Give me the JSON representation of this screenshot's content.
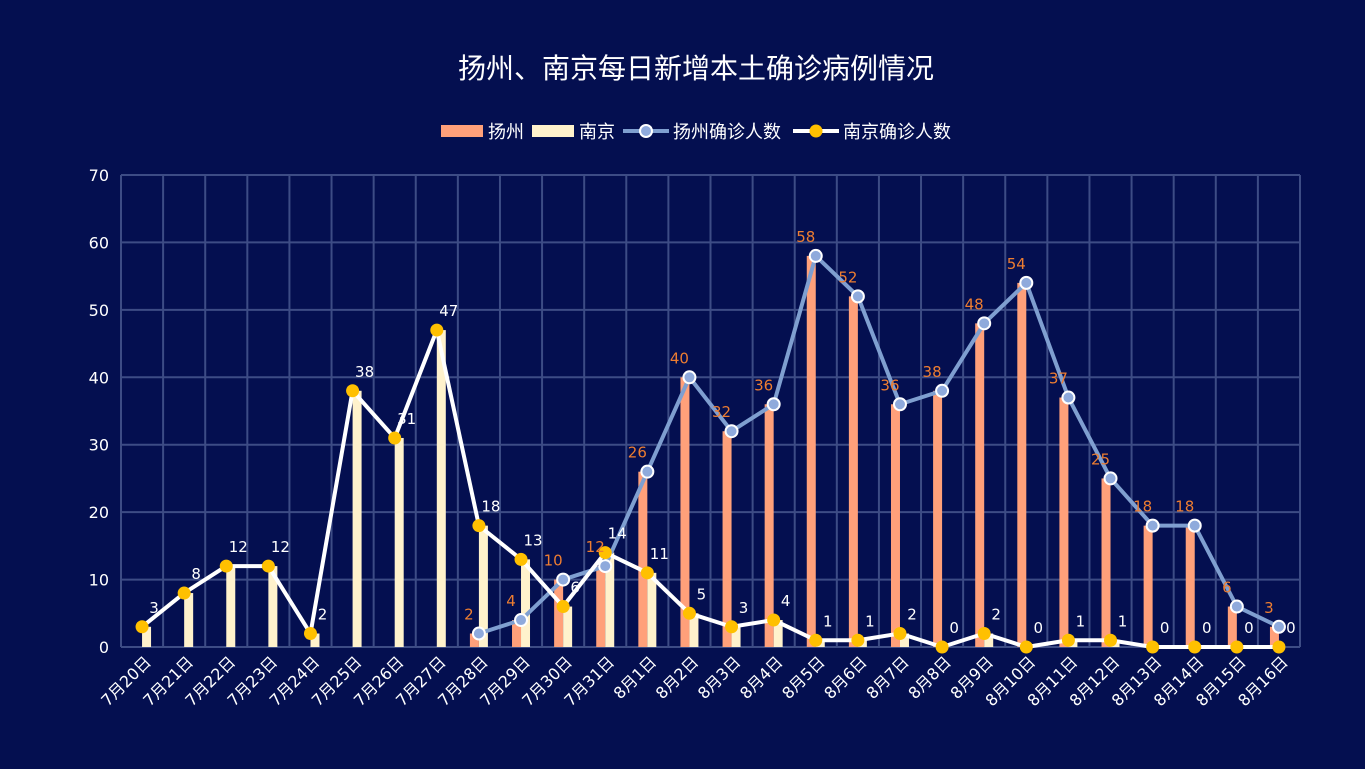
{
  "chart_data": {
    "type": "bar+line",
    "title": "扬州、南京每日新增本土确诊病例情况",
    "categories": [
      "7月20日",
      "7月21日",
      "7月22日",
      "7月23日",
      "7月24日",
      "7月25日",
      "7月26日",
      "7月27日",
      "7月28日",
      "7月29日",
      "7月30日",
      "7月31日",
      "8月1日",
      "8月2日",
      "8月3日",
      "8月4日",
      "8月5日",
      "8月6日",
      "8月7日",
      "8月8日",
      "8月9日",
      "8月10日",
      "8月11日",
      "8月12日",
      "8月13日",
      "8月14日",
      "8月15日",
      "8月16日"
    ],
    "series": [
      {
        "name": "扬州",
        "kind": "bar",
        "color": "#ffa07a",
        "values": [
          null,
          null,
          null,
          null,
          null,
          null,
          null,
          null,
          2,
          4,
          10,
          12,
          26,
          40,
          32,
          36,
          58,
          52,
          36,
          38,
          48,
          54,
          37,
          25,
          18,
          18,
          6,
          3
        ]
      },
      {
        "name": "南京",
        "kind": "bar",
        "color": "#fff2cc",
        "values": [
          3,
          8,
          12,
          12,
          2,
          38,
          31,
          47,
          18,
          13,
          6,
          14,
          11,
          5,
          3,
          4,
          1,
          1,
          2,
          0,
          2,
          0,
          1,
          1,
          0,
          0,
          0,
          0
        ]
      },
      {
        "name": "扬州确诊人数",
        "kind": "line",
        "color": "#7f9fd0",
        "label_color": "#ed7d31",
        "values": [
          null,
          null,
          null,
          null,
          null,
          null,
          null,
          null,
          2,
          4,
          10,
          12,
          26,
          40,
          32,
          36,
          58,
          52,
          36,
          38,
          48,
          54,
          37,
          25,
          18,
          18,
          6,
          3
        ]
      },
      {
        "name": "南京确诊人数",
        "kind": "line",
        "color": "#ffffff",
        "marker_color": "#ffc000",
        "label_color": "#ffffff",
        "values": [
          3,
          8,
          12,
          12,
          2,
          38,
          31,
          47,
          18,
          13,
          6,
          14,
          11,
          5,
          3,
          4,
          1,
          1,
          2,
          0,
          2,
          0,
          1,
          1,
          0,
          0,
          0,
          0
        ]
      }
    ],
    "yticks": [
      0,
      10,
      20,
      30,
      40,
      50,
      60,
      70
    ],
    "ylim": [
      0,
      70
    ],
    "grid": true,
    "legend": "top-center",
    "background": "#040f50"
  }
}
